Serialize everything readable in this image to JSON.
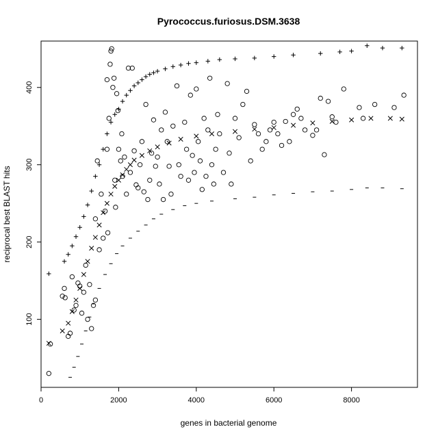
{
  "chart_data": {
    "type": "scatter",
    "title": "Pyrococcus.furiosus.DSM.3638",
    "xlabel": "genes in bacterial genome",
    "ylabel": "reciprocal best BLAST hits",
    "xlim": [
      0,
      9700
    ],
    "ylim": [
      12,
      460
    ],
    "x_ticks": [
      0,
      2000,
      4000,
      6000,
      8000
    ],
    "y_ticks": [
      100,
      200,
      300,
      400
    ],
    "grid": false,
    "legend": "none",
    "series": [
      {
        "marker": "plus",
        "points": [
          [
            200,
            159
          ],
          [
            600,
            175
          ],
          [
            700,
            184
          ],
          [
            800,
            195
          ],
          [
            900,
            207
          ],
          [
            1000,
            219
          ],
          [
            1100,
            233
          ],
          [
            1200,
            248
          ],
          [
            1300,
            266
          ],
          [
            1400,
            285
          ],
          [
            1500,
            300
          ],
          [
            1600,
            320
          ],
          [
            1700,
            340
          ],
          [
            1800,
            355
          ],
          [
            1900,
            365
          ],
          [
            2000,
            372
          ],
          [
            2100,
            382
          ],
          [
            2200,
            390
          ],
          [
            2300,
            396
          ],
          [
            2400,
            402
          ],
          [
            2500,
            406
          ],
          [
            2600,
            410
          ],
          [
            2700,
            414
          ],
          [
            2800,
            417
          ],
          [
            2900,
            419
          ],
          [
            3000,
            421
          ],
          [
            3200,
            424
          ],
          [
            3400,
            427
          ],
          [
            3600,
            429
          ],
          [
            3800,
            431
          ],
          [
            4000,
            432
          ],
          [
            4300,
            434
          ],
          [
            4600,
            436
          ],
          [
            5000,
            437
          ],
          [
            5500,
            438
          ],
          [
            6000,
            440
          ],
          [
            6500,
            442
          ],
          [
            7200,
            444
          ],
          [
            7700,
            446
          ],
          [
            8000,
            447
          ],
          [
            8400,
            454
          ],
          [
            8800,
            451
          ],
          [
            9300,
            451
          ]
        ]
      },
      {
        "marker": "x",
        "points": [
          [
            200,
            69
          ],
          [
            550,
            85
          ],
          [
            700,
            95
          ],
          [
            800,
            110
          ],
          [
            900,
            125
          ],
          [
            1000,
            140
          ],
          [
            1100,
            158
          ],
          [
            1200,
            175
          ],
          [
            1300,
            192
          ],
          [
            1400,
            206
          ],
          [
            1500,
            222
          ],
          [
            1600,
            238
          ],
          [
            1700,
            250
          ],
          [
            1800,
            262
          ],
          [
            1900,
            272
          ],
          [
            2000,
            280
          ],
          [
            2100,
            287
          ],
          [
            2200,
            294
          ],
          [
            2300,
            300
          ],
          [
            2400,
            306
          ],
          [
            2600,
            312
          ],
          [
            2800,
            318
          ],
          [
            3000,
            323
          ],
          [
            3300,
            328
          ],
          [
            3600,
            333
          ],
          [
            4000,
            337
          ],
          [
            4400,
            340
          ],
          [
            5000,
            343
          ],
          [
            5500,
            346
          ],
          [
            6000,
            348
          ],
          [
            6500,
            351
          ],
          [
            7000,
            354
          ],
          [
            7500,
            356
          ],
          [
            8000,
            358
          ],
          [
            8500,
            360
          ],
          [
            9000,
            360
          ],
          [
            9300,
            359
          ]
        ]
      },
      {
        "marker": "dash",
        "points": [
          [
            650,
            12
          ],
          [
            750,
            25
          ],
          [
            850,
            38
          ],
          [
            950,
            52
          ],
          [
            1050,
            68
          ],
          [
            1150,
            85
          ],
          [
            1250,
            103
          ],
          [
            1350,
            120
          ],
          [
            1500,
            140
          ],
          [
            1650,
            158
          ],
          [
            1800,
            172
          ],
          [
            1950,
            185
          ],
          [
            2100,
            195
          ],
          [
            2300,
            205
          ],
          [
            2500,
            214
          ],
          [
            2700,
            222
          ],
          [
            2900,
            230
          ],
          [
            3100,
            236
          ],
          [
            3400,
            242
          ],
          [
            3700,
            247
          ],
          [
            4000,
            250
          ],
          [
            4400,
            253
          ],
          [
            5000,
            256
          ],
          [
            5500,
            258
          ],
          [
            6000,
            261
          ],
          [
            6500,
            263
          ],
          [
            7000,
            265
          ],
          [
            7500,
            266
          ],
          [
            8000,
            268
          ],
          [
            8400,
            270
          ],
          [
            8800,
            270
          ],
          [
            9300,
            269
          ]
        ]
      },
      {
        "marker": "circle",
        "points": [
          [
            200,
            30
          ],
          [
            240,
            68
          ],
          [
            550,
            130
          ],
          [
            600,
            140
          ],
          [
            620,
            128
          ],
          [
            700,
            78
          ],
          [
            750,
            82
          ],
          [
            800,
            155
          ],
          [
            850,
            112
          ],
          [
            900,
            118
          ],
          [
            950,
            147
          ],
          [
            1000,
            143
          ],
          [
            1050,
            108
          ],
          [
            1100,
            135
          ],
          [
            1150,
            170
          ],
          [
            1200,
            100
          ],
          [
            1250,
            145
          ],
          [
            1300,
            88
          ],
          [
            1350,
            118
          ],
          [
            1400,
            125
          ],
          [
            1400,
            230
          ],
          [
            1450,
            305
          ],
          [
            1500,
            190
          ],
          [
            1550,
            262
          ],
          [
            1600,
            205
          ],
          [
            1650,
            240
          ],
          [
            1700,
            410
          ],
          [
            1700,
            320
          ],
          [
            1720,
            212
          ],
          [
            1750,
            360
          ],
          [
            1780,
            430
          ],
          [
            1800,
            447
          ],
          [
            1820,
            450
          ],
          [
            1850,
            400
          ],
          [
            1880,
            412
          ],
          [
            1900,
            280
          ],
          [
            1920,
            245
          ],
          [
            1950,
            392
          ],
          [
            1980,
            370
          ],
          [
            2000,
            320
          ],
          [
            2050,
            305
          ],
          [
            2080,
            340
          ],
          [
            2100,
            285
          ],
          [
            2150,
            310
          ],
          [
            2200,
            262
          ],
          [
            2250,
            425
          ],
          [
            2300,
            290
          ],
          [
            2350,
            425
          ],
          [
            2400,
            318
          ],
          [
            2450,
            274
          ],
          [
            2500,
            270
          ],
          [
            2550,
            300
          ],
          [
            2600,
            330
          ],
          [
            2650,
            265
          ],
          [
            2700,
            378
          ],
          [
            2750,
            255
          ],
          [
            2800,
            280
          ],
          [
            2850,
            315
          ],
          [
            2900,
            358
          ],
          [
            2950,
            298
          ],
          [
            3000,
            310
          ],
          [
            3050,
            275
          ],
          [
            3100,
            345
          ],
          [
            3150,
            255
          ],
          [
            3200,
            368
          ],
          [
            3250,
            330
          ],
          [
            3300,
            298
          ],
          [
            3350,
            262
          ],
          [
            3400,
            350
          ],
          [
            3500,
            402
          ],
          [
            3550,
            300
          ],
          [
            3600,
            285
          ],
          [
            3700,
            355
          ],
          [
            3750,
            320
          ],
          [
            3800,
            280
          ],
          [
            3850,
            390
          ],
          [
            3900,
            312
          ],
          [
            3950,
            290
          ],
          [
            4000,
            398
          ],
          [
            4050,
            330
          ],
          [
            4100,
            305
          ],
          [
            4150,
            268
          ],
          [
            4200,
            360
          ],
          [
            4250,
            285
          ],
          [
            4300,
            345
          ],
          [
            4350,
            412
          ],
          [
            4400,
            300
          ],
          [
            4450,
            275
          ],
          [
            4500,
            320
          ],
          [
            4550,
            365
          ],
          [
            4600,
            340
          ],
          [
            4700,
            290
          ],
          [
            4800,
            405
          ],
          [
            4850,
            315
          ],
          [
            4900,
            275
          ],
          [
            5000,
            360
          ],
          [
            5100,
            335
          ],
          [
            5200,
            378
          ],
          [
            5300,
            395
          ],
          [
            5400,
            305
          ],
          [
            5500,
            352
          ],
          [
            5600,
            340
          ],
          [
            5700,
            320
          ],
          [
            5800,
            330
          ],
          [
            5900,
            345
          ],
          [
            6000,
            355
          ],
          [
            6100,
            340
          ],
          [
            6200,
            325
          ],
          [
            6300,
            356
          ],
          [
            6400,
            330
          ],
          [
            6500,
            365
          ],
          [
            6600,
            372
          ],
          [
            6700,
            360
          ],
          [
            6800,
            345
          ],
          [
            7000,
            338
          ],
          [
            7100,
            345
          ],
          [
            7200,
            386
          ],
          [
            7300,
            313
          ],
          [
            7400,
            382
          ],
          [
            7500,
            362
          ],
          [
            7600,
            355
          ],
          [
            7800,
            398
          ],
          [
            8200,
            374
          ],
          [
            8300,
            360
          ],
          [
            8600,
            378
          ],
          [
            9100,
            374
          ],
          [
            9350,
            390
          ]
        ]
      }
    ]
  }
}
